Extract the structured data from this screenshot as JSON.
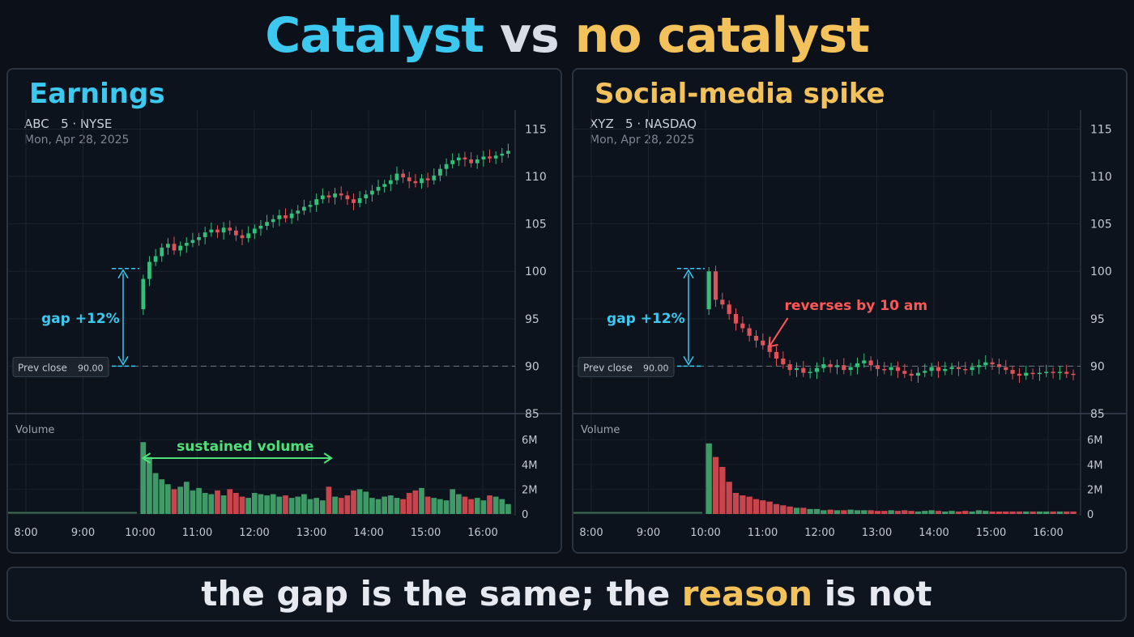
{
  "headline": {
    "part1": "Catalyst",
    "part2": " vs ",
    "part3": "no catalyst"
  },
  "colors": {
    "cyan": "#3cc8ef",
    "gold": "#f3c25a",
    "up": "#33c07a",
    "down": "#e0525a",
    "green_note": "#4fe07a",
    "red_note": "#ff5757"
  },
  "footer": {
    "part1": "the gap is the same; the ",
    "part2": "reason",
    "part3": " is not"
  },
  "chart_data": [
    {
      "type": "candlestick",
      "heading": "Earnings",
      "ticker": "ABC",
      "interval": "5",
      "exchange": "NYSE",
      "date": "Mon, Apr 28, 2025",
      "ylim": [
        85,
        117
      ],
      "y_ticks": [
        85,
        90,
        95,
        100,
        105,
        110,
        115
      ],
      "prev_close": {
        "label": "Prev close",
        "value": "90.00",
        "price": 90
      },
      "gap_label": "gap +12%",
      "gap_top": 100.3,
      "volume_label": "Volume",
      "volume_ticks": [
        "0",
        "2M",
        "4M",
        "6M"
      ],
      "volume_tick_values": [
        0,
        2,
        4,
        6
      ],
      "x_ticks": [
        "8:00",
        "9:00",
        "10:00",
        "11:00",
        "12:00",
        "13:00",
        "14:00",
        "15:00",
        "16:00"
      ],
      "x_tick_hours": [
        8,
        9,
        10,
        11,
        12,
        13,
        14,
        15,
        16
      ],
      "session_start": 10.0,
      "premarket_volume": 0.1,
      "annotation": {
        "text": "sustained volume",
        "kind": "arrow-right",
        "from_hour": 10.05,
        "to_hour": 13.35
      },
      "closes": [
        99.2,
        101.0,
        101.6,
        102.5,
        102.9,
        102.2,
        102.7,
        103.0,
        103.3,
        103.6,
        104.1,
        104.4,
        104.1,
        104.6,
        104.3,
        103.8,
        103.5,
        104.0,
        104.5,
        104.8,
        105.2,
        105.5,
        105.9,
        105.6,
        106.1,
        106.4,
        106.8,
        107.0,
        107.6,
        108.0,
        107.8,
        108.2,
        108.0,
        107.6,
        107.2,
        107.7,
        108.1,
        108.5,
        108.9,
        109.2,
        109.6,
        110.3,
        109.9,
        109.5,
        109.3,
        109.8,
        109.6,
        110.1,
        110.8,
        111.3,
        111.7,
        112.0,
        111.8,
        111.4,
        111.8,
        112.1,
        111.9,
        112.2,
        112.4,
        112.7
      ],
      "volumes": [
        5.8,
        4.6,
        3.3,
        2.8,
        2.4,
        2.0,
        2.2,
        2.6,
        1.9,
        2.1,
        1.7,
        1.6,
        1.9,
        1.5,
        2.0,
        1.7,
        1.4,
        1.3,
        1.7,
        1.6,
        1.5,
        1.6,
        1.4,
        1.5,
        1.3,
        1.4,
        1.6,
        1.2,
        1.3,
        1.1,
        2.2,
        1.4,
        1.3,
        1.5,
        1.9,
        2.0,
        1.8,
        1.3,
        1.2,
        1.4,
        1.5,
        1.3,
        1.2,
        1.7,
        1.9,
        2.1,
        1.4,
        1.3,
        1.2,
        1.1,
        2.0,
        1.6,
        1.4,
        1.2,
        1.3,
        1.1,
        1.5,
        1.4,
        1.2,
        0.8
      ]
    },
    {
      "type": "candlestick",
      "heading": "Social-media spike",
      "ticker": "XYZ",
      "interval": "5",
      "exchange": "NASDAQ",
      "date": "Mon, Apr 28, 2025",
      "ylim": [
        85,
        117
      ],
      "y_ticks": [
        85,
        90,
        95,
        100,
        105,
        110,
        115
      ],
      "prev_close": {
        "label": "Prev close",
        "value": "90.00",
        "price": 90
      },
      "gap_label": "gap +12%",
      "gap_top": 100.3,
      "volume_label": "Volume",
      "volume_ticks": [
        "0",
        "2M",
        "4M",
        "6M"
      ],
      "volume_tick_values": [
        0,
        2,
        4,
        6
      ],
      "x_ticks": [
        "8:00",
        "9:00",
        "10:00",
        "11:00",
        "12:00",
        "13:00",
        "14:00",
        "15:00",
        "16:00"
      ],
      "x_tick_hours": [
        8,
        9,
        10,
        11,
        12,
        13,
        14,
        15,
        16
      ],
      "session_start": 10.0,
      "premarket_volume": 0.1,
      "annotation": {
        "text": "reverses by 10 am",
        "kind": "arrow-down-left",
        "at_hour": 11.1,
        "at_price": 92.0
      },
      "closes": [
        100.0,
        97.0,
        96.5,
        95.5,
        94.5,
        94.0,
        93.2,
        92.7,
        92.2,
        91.5,
        90.8,
        90.2,
        89.6,
        89.8,
        89.3,
        89.4,
        89.8,
        90.2,
        89.9,
        90.1,
        89.6,
        89.9,
        90.3,
        90.6,
        90.1,
        89.7,
        89.6,
        89.9,
        89.5,
        89.2,
        89.0,
        89.3,
        89.5,
        89.9,
        89.5,
        89.7,
        89.9,
        89.7,
        89.6,
        89.9,
        90.1,
        90.4,
        90.2,
        89.9,
        89.6,
        89.2,
        89.0,
        89.3,
        89.2,
        89.3,
        89.4,
        89.3,
        89.4,
        89.2,
        89.1
      ],
      "volumes": [
        5.7,
        4.6,
        3.8,
        2.6,
        1.7,
        1.5,
        1.4,
        1.2,
        1.1,
        1.0,
        0.8,
        0.7,
        0.6,
        0.5,
        0.5,
        0.4,
        0.4,
        0.3,
        0.35,
        0.3,
        0.3,
        0.35,
        0.3,
        0.3,
        0.3,
        0.25,
        0.25,
        0.3,
        0.25,
        0.3,
        0.25,
        0.2,
        0.25,
        0.3,
        0.25,
        0.2,
        0.25,
        0.2,
        0.25,
        0.2,
        0.3,
        0.25,
        0.2,
        0.2,
        0.2,
        0.2,
        0.2,
        0.2,
        0.2,
        0.2,
        0.2,
        0.2,
        0.2,
        0.2,
        0.2
      ]
    }
  ]
}
